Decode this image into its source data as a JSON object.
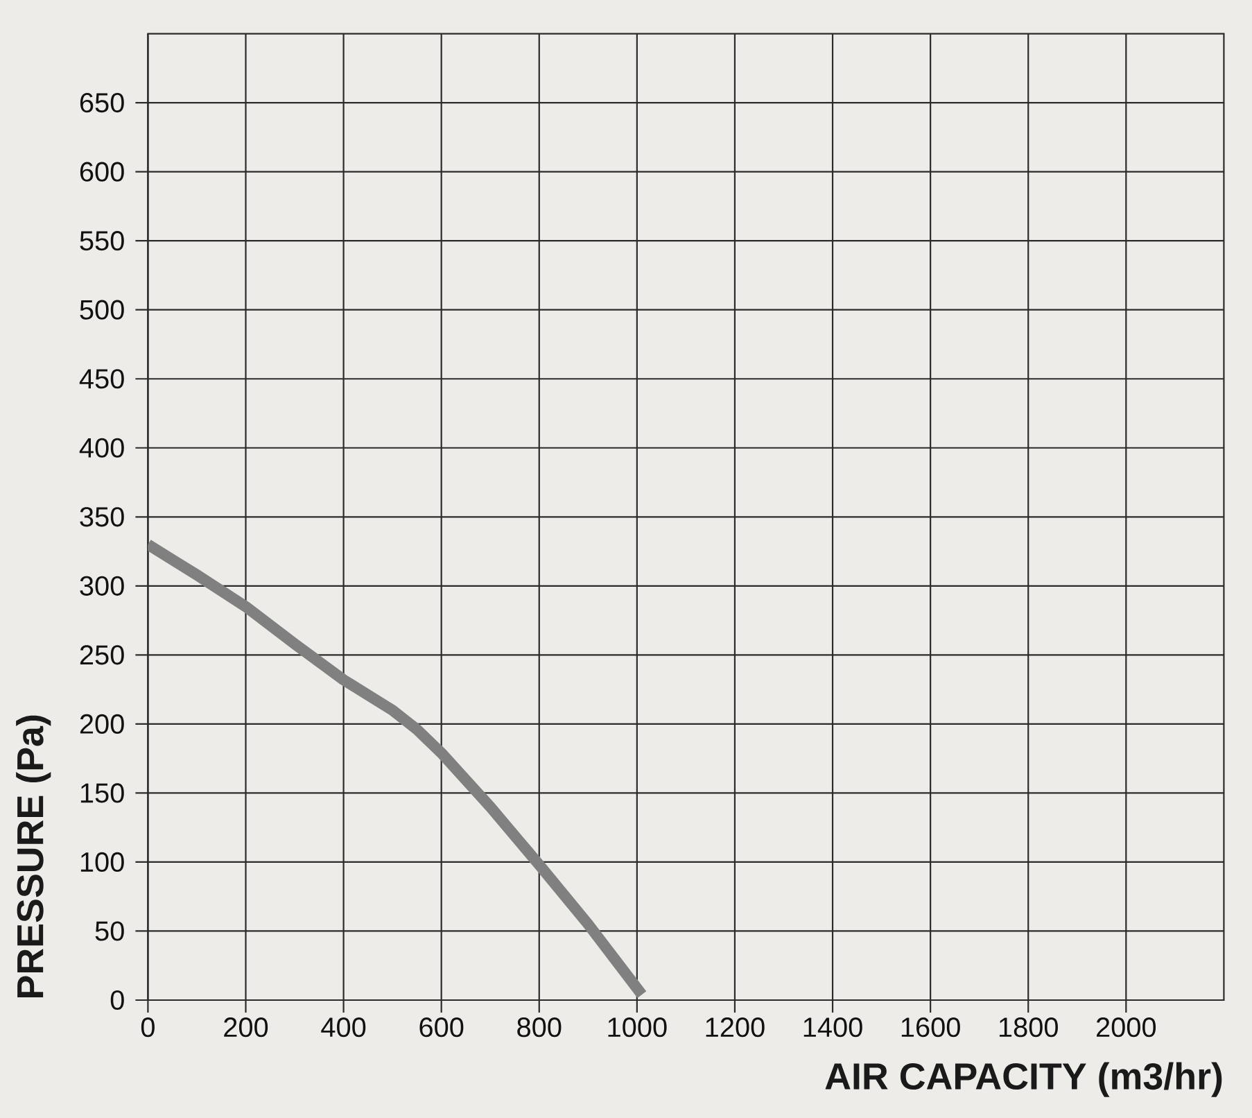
{
  "chart_data": {
    "type": "line",
    "xlabel": "AIR CAPACITY (m3/hr)",
    "ylabel": "PRESSURE (Pa)",
    "x": [
      0,
      100,
      200,
      300,
      400,
      500,
      550,
      600,
      700,
      800,
      900,
      1010
    ],
    "values": [
      330,
      308,
      285,
      258,
      232,
      210,
      196,
      179,
      140,
      98,
      55,
      4
    ],
    "color": "#808080",
    "xlim": [
      0,
      2200
    ],
    "ylim": [
      0,
      700
    ],
    "xticks": [
      0,
      200,
      400,
      600,
      800,
      1000,
      1200,
      1400,
      1600,
      1800,
      2000
    ],
    "yticks": [
      0,
      50,
      100,
      150,
      200,
      250,
      300,
      350,
      400,
      450,
      500,
      550,
      600,
      650
    ],
    "grid": true
  }
}
